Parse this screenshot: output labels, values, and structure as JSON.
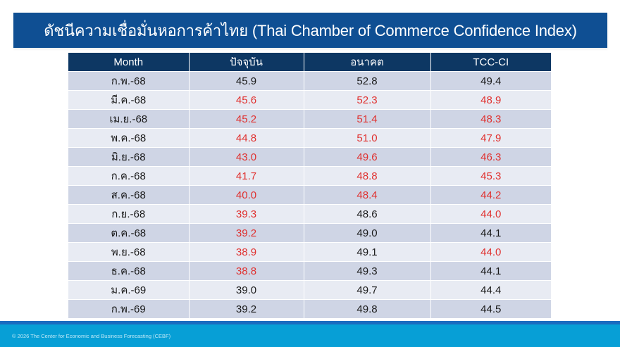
{
  "title": "ดัชนีความเชื่อมั่นหอการค้าไทย (Thai Chamber of Commerce Confidence Index)",
  "table": {
    "headers": [
      "Month",
      "ปัจจุบัน",
      "อนาคต",
      "TCC-CI"
    ],
    "rows": [
      {
        "month": "ก.พ.-68",
        "current": "45.9",
        "future": "52.8",
        "tcc_ci": "49.4",
        "current_down": false,
        "future_down": false,
        "tcc_ci_down": false
      },
      {
        "month": "มี.ค.-68",
        "current": "45.6",
        "future": "52.3",
        "tcc_ci": "48.9",
        "current_down": true,
        "future_down": true,
        "tcc_ci_down": true
      },
      {
        "month": "เม.ย.-68",
        "current": "45.2",
        "future": "51.4",
        "tcc_ci": "48.3",
        "current_down": true,
        "future_down": true,
        "tcc_ci_down": true
      },
      {
        "month": "พ.ค.-68",
        "current": "44.8",
        "future": "51.0",
        "tcc_ci": "47.9",
        "current_down": true,
        "future_down": true,
        "tcc_ci_down": true
      },
      {
        "month": "มิ.ย.-68",
        "current": "43.0",
        "future": "49.6",
        "tcc_ci": "46.3",
        "current_down": true,
        "future_down": true,
        "tcc_ci_down": true
      },
      {
        "month": "ก.ค.-68",
        "current": "41.7",
        "future": "48.8",
        "tcc_ci": "45.3",
        "current_down": true,
        "future_down": true,
        "tcc_ci_down": true
      },
      {
        "month": "ส.ค.-68",
        "current": "40.0",
        "future": "48.4",
        "tcc_ci": "44.2",
        "current_down": true,
        "future_down": true,
        "tcc_ci_down": true
      },
      {
        "month": "ก.ย.-68",
        "current": "39.3",
        "future": "48.6",
        "tcc_ci": "44.0",
        "current_down": true,
        "future_down": false,
        "tcc_ci_down": true
      },
      {
        "month": "ต.ค.-68",
        "current": "39.2",
        "future": "49.0",
        "tcc_ci": "44.1",
        "current_down": true,
        "future_down": false,
        "tcc_ci_down": false
      },
      {
        "month": "พ.ย.-68",
        "current": "38.9",
        "future": "49.1",
        "tcc_ci": "44.0",
        "current_down": true,
        "future_down": false,
        "tcc_ci_down": true
      },
      {
        "month": "ธ.ค.-68",
        "current": "38.8",
        "future": "49.3",
        "tcc_ci": "44.1",
        "current_down": true,
        "future_down": false,
        "tcc_ci_down": false
      },
      {
        "month": "ม.ค.-69",
        "current": "39.0",
        "future": "49.7",
        "tcc_ci": "44.4",
        "current_down": false,
        "future_down": false,
        "tcc_ci_down": false
      },
      {
        "month": "ก.พ.-69",
        "current": "39.2",
        "future": "49.8",
        "tcc_ci": "44.5",
        "current_down": false,
        "future_down": false,
        "tcc_ci_down": false
      }
    ]
  },
  "footer": {
    "copyright": "© 2026 The Center for Economic and Business Forecasting (CEBF)"
  },
  "colors": {
    "title_bg": "#0f4f93",
    "header_bg": "#0d3763",
    "row_dark": "#cfd5e5",
    "row_light": "#e8ebf3",
    "decline_text": "#e0312f",
    "footer_stripe": "#1a6cc0",
    "footer_bg": "#079fd6"
  }
}
